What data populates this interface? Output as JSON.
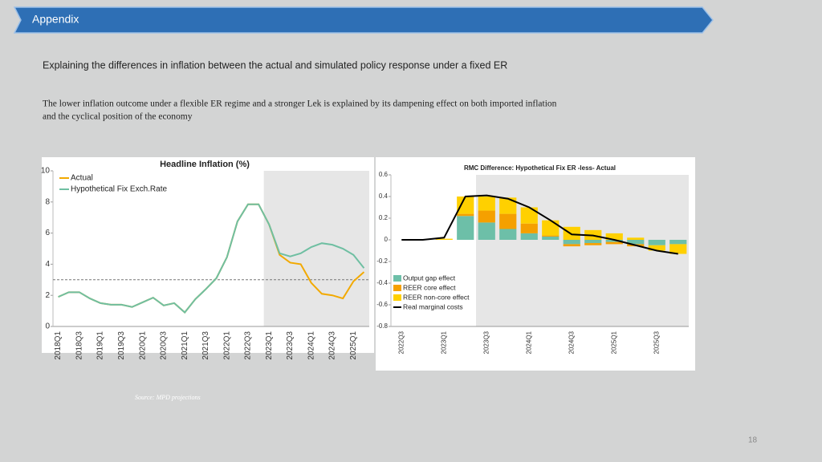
{
  "header": {
    "title": "Appendix"
  },
  "heading": "Explaining the differences in inflation between the actual and simulated policy response under a fixed ER",
  "paragraph": [
    "The lower inflation outcome under a flexible ER regime and a stronger Lek is explained by its dampening effect on both imported inflation",
    "and the cyclical position of the economy"
  ],
  "source": "Source: MPD projections",
  "page_number": "18",
  "chart_data": [
    {
      "type": "line",
      "title": "Headline Inflation (%)",
      "categories": [
        "2018Q1",
        null,
        "2018Q3",
        null,
        "2019Q1",
        null,
        "2019Q3",
        null,
        "2020Q1",
        null,
        "2020Q3",
        null,
        "2021Q1",
        null,
        "2021Q3",
        null,
        "2022Q1",
        null,
        "2022Q3",
        null,
        "2023Q1",
        null,
        "2023Q3",
        null,
        "2024Q1",
        null,
        "2024Q3",
        null,
        "2025Q1",
        null
      ],
      "series": [
        {
          "name": "Actual",
          "color": "#f2a900",
          "values": [
            1.9,
            2.2,
            2.2,
            1.8,
            1.5,
            1.4,
            1.4,
            1.25,
            1.55,
            1.85,
            1.35,
            1.5,
            0.9,
            1.75,
            2.4,
            3.1,
            4.45,
            6.75,
            7.85,
            7.85,
            6.55,
            4.6,
            4.1,
            4.0,
            2.8,
            2.1,
            2.0,
            1.8,
            2.9,
            3.5
          ]
        },
        {
          "name": "Hypothetical Fix Exch.Rate",
          "color": "#6fbfa2",
          "values": [
            1.9,
            2.2,
            2.2,
            1.8,
            1.5,
            1.4,
            1.4,
            1.25,
            1.55,
            1.85,
            1.35,
            1.5,
            0.9,
            1.75,
            2.4,
            3.1,
            4.45,
            6.75,
            7.85,
            7.85,
            6.55,
            4.7,
            4.5,
            4.7,
            5.1,
            5.35,
            5.25,
            5.0,
            4.6,
            3.75
          ]
        }
      ],
      "ylim": [
        0,
        10
      ],
      "yticks": [
        0,
        2,
        4,
        6,
        8,
        10
      ],
      "reference_line": 3,
      "shade_from": "2023Q1",
      "legend": "top-left"
    },
    {
      "type": "stacked-bar-line",
      "title": "RMC Difference:  Hypothetical Fix ER -less- Actual",
      "categories": [
        "2022Q3",
        null,
        "2023Q1",
        null,
        "2023Q3",
        null,
        "2024Q1",
        null,
        "2024Q3",
        null,
        "2025Q1",
        null,
        "2025Q3",
        null
      ],
      "series": [
        {
          "name": "Output gap effect",
          "color": "#6dbfa8",
          "values": [
            0,
            0,
            0,
            0.22,
            0.16,
            0.1,
            0.06,
            0.03,
            -0.04,
            -0.03,
            -0.02,
            -0.04,
            -0.05,
            -0.04
          ]
        },
        {
          "name": "REER core effect",
          "color": "#f5a000",
          "values": [
            0,
            0,
            0,
            0.02,
            0.11,
            0.14,
            0.09,
            0.01,
            -0.02,
            -0.02,
            -0.02,
            -0.02,
            0,
            0
          ]
        },
        {
          "name": "REER non-core effect",
          "color": "#ffd000",
          "values": [
            0,
            0,
            0.01,
            0.16,
            0.13,
            0.15,
            0.15,
            0.14,
            0.12,
            0.09,
            0.06,
            0.02,
            -0.05,
            -0.09
          ]
        },
        {
          "name": "Real marginal costs",
          "color": "#000000",
          "kind": "line",
          "values": [
            0,
            0,
            0.02,
            0.4,
            0.41,
            0.38,
            0.3,
            0.18,
            0.05,
            0.04,
            0,
            -0.05,
            -0.1,
            -0.13
          ]
        }
      ],
      "ylim": [
        -0.8,
        0.6
      ],
      "yticks": [
        0.6,
        0.4,
        0.2,
        0,
        -0.2,
        -0.4,
        -0.6,
        -0.8
      ],
      "shade_from": "2023Q3",
      "legend": "bottom-left"
    }
  ]
}
